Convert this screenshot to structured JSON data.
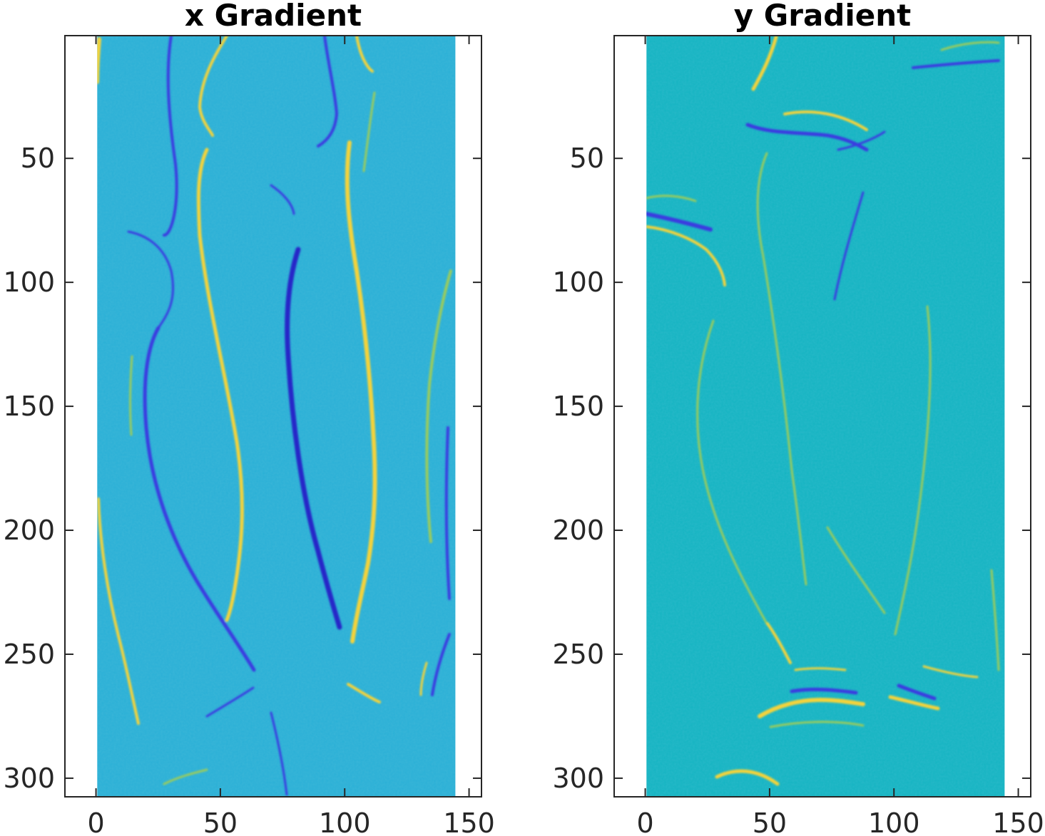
{
  "chart_data": [
    {
      "type": "heatmap",
      "title": "x Gradient",
      "xlabel": "",
      "ylabel": "",
      "xlim": [
        -12.5,
        155
      ],
      "ylim": [
        307.5,
        0.5
      ],
      "x_ticks": [
        0,
        50,
        100,
        150
      ],
      "y_ticks": [
        50,
        100,
        150,
        200,
        250,
        300
      ],
      "image_extent": {
        "x": [
          0.5,
          144.5
        ],
        "y": [
          0.5,
          307.5
        ]
      },
      "colormap": "parula",
      "colors": {
        "background": "#2ab0d6",
        "negative": "#3a3ae0",
        "positive": "#f4d33a",
        "mid_positive": "#9ccc5a"
      }
    },
    {
      "type": "heatmap",
      "title": "y Gradient",
      "xlabel": "",
      "ylabel": "",
      "xlim": [
        -12.5,
        155
      ],
      "ylim": [
        307.5,
        0.5
      ],
      "x_ticks": [
        0,
        50,
        100,
        150
      ],
      "y_ticks": [
        50,
        100,
        150,
        200,
        250,
        300
      ],
      "image_extent": {
        "x": [
          0.5,
          144.5
        ],
        "y": [
          0.5,
          307.5
        ]
      },
      "colormap": "parula",
      "colors": {
        "background": "#14b4c2",
        "negative": "#3a3ae0",
        "positive": "#f4d33a",
        "mid_positive": "#9ccc5a"
      }
    }
  ]
}
